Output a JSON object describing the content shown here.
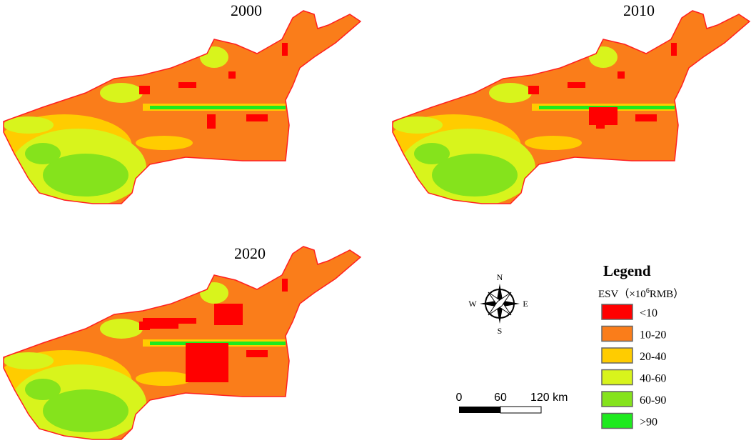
{
  "maps": [
    {
      "title": "2000"
    },
    {
      "title": "2010"
    },
    {
      "title": "2020"
    }
  ],
  "compass": {
    "n": "N",
    "e": "E",
    "s": "S",
    "w": "W"
  },
  "scale_bar": {
    "labels": [
      "0",
      "60",
      "120 km"
    ]
  },
  "legend": {
    "title": "Legend",
    "subtitle_prefix": "ESV（×10",
    "subtitle_sup": "6",
    "subtitle_suffix": "RMB）",
    "items": [
      {
        "label": "<10",
        "color": "#ff0000"
      },
      {
        "label": "10-20",
        "color": "#fa7d1a"
      },
      {
        "label": "20-40",
        "color": "#ffcc00"
      },
      {
        "label": "40-60",
        "color": "#d8f41c"
      },
      {
        "label": "60-90",
        "color": "#85e31c"
      },
      {
        "label": ">90",
        "color": "#1eea1e"
      }
    ]
  }
}
